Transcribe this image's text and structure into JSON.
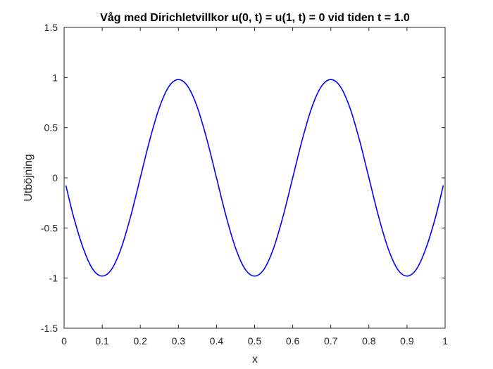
{
  "chart_data": {
    "type": "line",
    "title": "Våg med Dirichletvillkor u(0, t) = u(1, t) = 0 vid tiden t = 1.0",
    "xlabel": "x",
    "ylabel": "Utböjning",
    "xlim": [
      0,
      1
    ],
    "ylim": [
      -1.5,
      1.5
    ],
    "x_ticks": [
      0,
      0.1,
      0.2,
      0.3,
      0.4,
      0.5,
      0.6,
      0.7,
      0.8,
      0.9,
      1
    ],
    "x_tick_labels": [
      "0",
      "0.1",
      "0.2",
      "0.3",
      "0.4",
      "0.5",
      "0.6",
      "0.7",
      "0.8",
      "0.9",
      "1"
    ],
    "y_ticks": [
      1.5,
      1,
      0.5,
      0,
      -0.5,
      -1,
      -1.5
    ],
    "y_tick_labels": [
      "1.5",
      "1",
      "0.5",
      "0",
      "-0.5",
      "-1",
      "-1.5"
    ],
    "grid": false,
    "box": true,
    "series": [
      {
        "color": "#0000ff",
        "x": [
          0.005,
          0.025,
          0.05,
          0.075,
          0.1,
          0.125,
          0.15,
          0.175,
          0.2,
          0.225,
          0.25,
          0.275,
          0.3,
          0.325,
          0.35,
          0.375,
          0.4,
          0.425,
          0.45,
          0.475,
          0.5,
          0.525,
          0.55,
          0.575,
          0.6,
          0.625,
          0.65,
          0.675,
          0.7,
          0.725,
          0.75,
          0.775,
          0.8,
          0.825,
          0.85,
          0.875,
          0.9,
          0.925,
          0.95,
          0.975,
          0.995
        ],
        "y": [
          -0.08,
          -0.39,
          -0.7,
          -0.91,
          -0.98,
          -0.91,
          -0.7,
          -0.38,
          0.0,
          0.38,
          0.7,
          0.91,
          0.98,
          0.91,
          0.7,
          0.38,
          0.0,
          -0.38,
          -0.7,
          -0.91,
          -0.98,
          -0.91,
          -0.7,
          -0.38,
          0.0,
          0.38,
          0.7,
          0.91,
          0.98,
          0.91,
          0.7,
          0.38,
          0.0,
          -0.38,
          -0.7,
          -0.91,
          -0.98,
          -0.91,
          -0.7,
          -0.39,
          -0.08
        ]
      }
    ]
  }
}
